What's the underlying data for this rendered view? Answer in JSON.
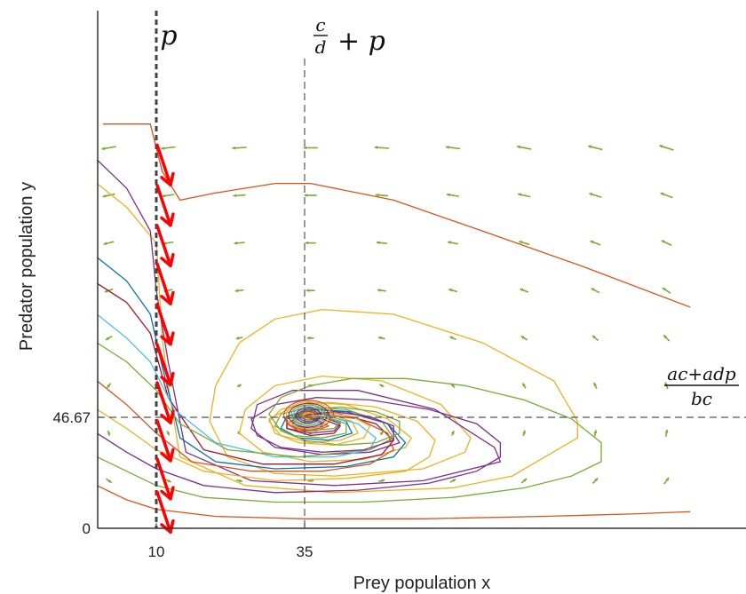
{
  "chart_data": {
    "type": "line",
    "title": "",
    "xlabel": "Prey population x",
    "ylabel": "Predator population y",
    "x_ticks": [
      {
        "value": 10,
        "label": "10"
      },
      {
        "value": 35,
        "label": "35"
      }
    ],
    "y_ticks": [
      {
        "value": 0,
        "label": "0"
      },
      {
        "value": 46.67,
        "label": "46.67"
      }
    ],
    "xlim": [
      0,
      100
    ],
    "ylim": [
      0,
      170
    ],
    "equilibrium": {
      "x": 35,
      "y": 46.67
    },
    "reference_lines": [
      {
        "orientation": "vertical",
        "value": 10,
        "style": "dashed-bold",
        "label": "p"
      },
      {
        "orientation": "vertical",
        "value": 35,
        "style": "dashed",
        "label_numerator": "c",
        "label_denominator": "d",
        "label_suffix": "+ p"
      },
      {
        "orientation": "horizontal",
        "value": 46.67,
        "style": "dashed",
        "label_numerator": "ac+adp",
        "label_denominator": "bc"
      }
    ],
    "spiral": {
      "center": [
        35,
        46.67
      ],
      "colors": [
        "#d95319",
        "#edb120",
        "#7e2f8e",
        "#77ac30",
        "#4dbeee",
        "#a2142f",
        "#0072bd"
      ]
    },
    "trajectories": [
      {
        "color": "#d95319",
        "points": [
          [
            1,
            170
          ],
          [
            9,
            170
          ],
          [
            11,
            150
          ],
          [
            14,
            138
          ],
          [
            20,
            141
          ],
          [
            30,
            145
          ],
          [
            36,
            145
          ],
          [
            50,
            138
          ],
          [
            65,
            125
          ],
          [
            82,
            110
          ],
          [
            100,
            93
          ]
        ]
      },
      {
        "color": "#edb120",
        "points": [
          [
            0,
            145
          ],
          [
            5,
            135
          ],
          [
            10,
            120
          ],
          [
            11,
            80
          ],
          [
            12,
            60
          ],
          [
            14,
            30
          ],
          [
            25,
            18
          ],
          [
            40,
            15
          ],
          [
            60,
            17
          ],
          [
            70,
            22
          ],
          [
            81,
            38
          ],
          [
            81,
            45
          ],
          [
            77,
            62
          ],
          [
            65,
            78
          ],
          [
            50,
            90
          ],
          [
            38,
            92
          ],
          [
            30,
            88
          ],
          [
            24,
            78
          ],
          [
            20,
            60
          ],
          [
            19,
            45
          ],
          [
            22,
            30
          ],
          [
            30,
            23
          ],
          [
            40,
            22
          ],
          [
            55,
            25
          ],
          [
            62,
            32
          ],
          [
            63,
            38
          ],
          [
            58,
            52
          ],
          [
            48,
            62
          ],
          [
            38,
            64
          ],
          [
            30,
            60
          ],
          [
            25,
            50
          ],
          [
            24,
            40
          ],
          [
            28,
            32
          ],
          [
            36,
            28
          ],
          [
            45,
            29
          ],
          [
            52,
            34
          ],
          [
            53,
            38
          ],
          [
            49,
            46
          ],
          [
            42,
            52
          ],
          [
            36,
            53
          ],
          [
            31,
            50
          ],
          [
            29,
            45
          ],
          [
            31,
            39
          ],
          [
            36,
            36
          ],
          [
            41,
            37
          ],
          [
            44,
            40
          ],
          [
            43,
            45
          ],
          [
            39,
            48
          ],
          [
            35,
            49
          ],
          [
            33,
            47
          ],
          [
            33,
            45
          ],
          [
            35,
            44
          ],
          [
            37,
            45
          ],
          [
            36,
            46.5
          ]
        ]
      },
      {
        "color": "#7e2f8e",
        "points": [
          [
            0,
            155
          ],
          [
            5,
            143
          ],
          [
            9,
            125
          ],
          [
            10,
            100
          ],
          [
            12,
            70
          ],
          [
            15,
            32
          ],
          [
            26,
            20
          ],
          [
            40,
            18
          ],
          [
            55,
            20
          ],
          [
            68,
            28
          ],
          [
            67,
            34
          ],
          [
            57,
            50
          ],
          [
            44,
            58
          ],
          [
            33,
            58
          ],
          [
            27,
            52
          ],
          [
            26,
            42
          ],
          [
            30,
            34
          ],
          [
            38,
            31
          ],
          [
            46,
            32
          ],
          [
            51,
            36
          ],
          [
            49,
            44
          ],
          [
            42,
            49
          ],
          [
            36,
            50
          ],
          [
            32,
            47
          ],
          [
            32,
            42
          ],
          [
            36,
            40
          ],
          [
            40,
            41
          ],
          [
            41,
            44
          ],
          [
            38,
            47
          ],
          [
            35,
            47
          ],
          [
            34.5,
            46
          ]
        ]
      },
      {
        "color": "#0072bd",
        "points": [
          [
            0,
            114
          ],
          [
            5,
            104
          ],
          [
            9,
            90
          ],
          [
            11,
            68
          ],
          [
            14,
            38
          ],
          [
            20,
            28
          ],
          [
            30,
            25
          ],
          [
            42,
            26
          ],
          [
            50,
            30
          ],
          [
            52,
            36
          ],
          [
            49,
            44
          ],
          [
            43,
            49
          ],
          [
            37,
            50
          ],
          [
            32,
            47
          ],
          [
            31,
            42
          ],
          [
            34,
            38
          ],
          [
            39,
            37
          ],
          [
            43,
            40
          ],
          [
            42,
            45
          ],
          [
            38,
            48
          ],
          [
            35,
            48
          ],
          [
            34,
            46
          ]
        ]
      },
      {
        "color": "#a2142f",
        "points": [
          [
            0,
            103
          ],
          [
            5,
            95
          ],
          [
            9,
            82
          ],
          [
            12,
            55
          ],
          [
            18,
            33
          ],
          [
            28,
            27
          ],
          [
            40,
            27
          ],
          [
            48,
            31
          ],
          [
            50,
            37
          ],
          [
            47,
            44
          ],
          [
            41,
            48
          ],
          [
            36,
            49
          ],
          [
            32,
            46
          ],
          [
            32,
            42
          ],
          [
            36,
            39
          ],
          [
            40,
            40
          ],
          [
            41,
            43
          ],
          [
            38,
            46
          ],
          [
            35.5,
            46.2
          ]
        ]
      },
      {
        "color": "#4dbeee",
        "points": [
          [
            0,
            90
          ],
          [
            5,
            80
          ],
          [
            9,
            70
          ],
          [
            13,
            50
          ],
          [
            20,
            36
          ],
          [
            30,
            30
          ],
          [
            40,
            30
          ],
          [
            46,
            33
          ],
          [
            47,
            38
          ],
          [
            44,
            44
          ],
          [
            39,
            47
          ],
          [
            35,
            47
          ],
          [
            33,
            45
          ],
          [
            34,
            42
          ],
          [
            37,
            42
          ],
          [
            38,
            44
          ],
          [
            36,
            46
          ]
        ]
      },
      {
        "color": "#77ac30",
        "points": [
          [
            0,
            78
          ],
          [
            5,
            70
          ],
          [
            10,
            58
          ],
          [
            14,
            44
          ],
          [
            22,
            33
          ],
          [
            34,
            30
          ],
          [
            46,
            33
          ],
          [
            50,
            38
          ],
          [
            48,
            45
          ],
          [
            42,
            50
          ],
          [
            36,
            51
          ],
          [
            31,
            48
          ],
          [
            30,
            43
          ],
          [
            33,
            39
          ],
          [
            38,
            38
          ],
          [
            42,
            40
          ],
          [
            42,
            44
          ],
          [
            38,
            47
          ],
          [
            35,
            47
          ],
          [
            34.5,
            46
          ]
        ]
      },
      {
        "color": "#d95319",
        "points": [
          [
            0,
            62
          ],
          [
            5,
            52
          ],
          [
            10,
            40
          ],
          [
            16,
            28
          ],
          [
            26,
            24
          ],
          [
            38,
            24
          ],
          [
            46,
            27
          ],
          [
            50,
            33
          ],
          [
            49,
            40
          ],
          [
            44,
            46
          ],
          [
            38,
            48
          ],
          [
            34,
            47
          ],
          [
            32,
            44
          ],
          [
            34,
            41
          ],
          [
            37,
            41
          ],
          [
            39,
            43
          ],
          [
            37,
            45.5
          ],
          [
            35.5,
            46.3
          ]
        ]
      },
      {
        "color": "#edb120",
        "points": [
          [
            0,
            50
          ],
          [
            5,
            42
          ],
          [
            10,
            33
          ],
          [
            18,
            24
          ],
          [
            30,
            20
          ],
          [
            42,
            21
          ],
          [
            52,
            24
          ],
          [
            56,
            30
          ],
          [
            57,
            37
          ],
          [
            54,
            45
          ],
          [
            47,
            51
          ],
          [
            39,
            53
          ],
          [
            33,
            51
          ],
          [
            29,
            46
          ],
          [
            30,
            40
          ],
          [
            34,
            36
          ],
          [
            40,
            35
          ],
          [
            45,
            38
          ],
          [
            46,
            43
          ],
          [
            43,
            47
          ],
          [
            38,
            49
          ],
          [
            35,
            48
          ],
          [
            33,
            46
          ],
          [
            34,
            44
          ],
          [
            36,
            44
          ],
          [
            36.5,
            45.5
          ]
        ]
      },
      {
        "color": "#7e2f8e",
        "points": [
          [
            0,
            40
          ],
          [
            5,
            32
          ],
          [
            10,
            25
          ],
          [
            18,
            18
          ],
          [
            30,
            15
          ],
          [
            44,
            16
          ],
          [
            56,
            19
          ],
          [
            64,
            24
          ],
          [
            68,
            30
          ],
          [
            68,
            36
          ],
          [
            64,
            44
          ],
          [
            56,
            50
          ],
          [
            46,
            54
          ],
          [
            37,
            55
          ],
          [
            30,
            52
          ],
          [
            26,
            46
          ],
          [
            27,
            39
          ],
          [
            31,
            34
          ],
          [
            38,
            32
          ],
          [
            45,
            33
          ],
          [
            50,
            37
          ],
          [
            50,
            43
          ],
          [
            46,
            47
          ],
          [
            40,
            49
          ],
          [
            36,
            48
          ],
          [
            33,
            46
          ],
          [
            33,
            43
          ],
          [
            36,
            42
          ],
          [
            38,
            43
          ],
          [
            37.5,
            45.2
          ],
          [
            35.8,
            46.2
          ]
        ]
      },
      {
        "color": "#77ac30",
        "points": [
          [
            0,
            30
          ],
          [
            5,
            24
          ],
          [
            10,
            18
          ],
          [
            18,
            13
          ],
          [
            30,
            11
          ],
          [
            45,
            11
          ],
          [
            60,
            13
          ],
          [
            72,
            17
          ],
          [
            80,
            22
          ],
          [
            85,
            28
          ],
          [
            85,
            36
          ],
          [
            80,
            46
          ],
          [
            72,
            54
          ],
          [
            62,
            60
          ],
          [
            52,
            63
          ],
          [
            43,
            63
          ],
          [
            36,
            60
          ],
          [
            31,
            55
          ],
          [
            29,
            48
          ],
          [
            31,
            41
          ],
          [
            35,
            37
          ],
          [
            41,
            35
          ],
          [
            47,
            36
          ],
          [
            51,
            40
          ],
          [
            51,
            45
          ],
          [
            47,
            49
          ],
          [
            41,
            51
          ],
          [
            36,
            50
          ],
          [
            33,
            47
          ],
          [
            33,
            43
          ],
          [
            36,
            41
          ],
          [
            40,
            42
          ],
          [
            41,
            45
          ],
          [
            38,
            47
          ],
          [
            35.5,
            46.5
          ]
        ]
      },
      {
        "color": "#d95319",
        "points": [
          [
            0,
            18
          ],
          [
            5,
            12
          ],
          [
            10,
            8
          ],
          [
            20,
            5
          ],
          [
            35,
            4
          ],
          [
            55,
            4
          ],
          [
            75,
            5
          ],
          [
            90,
            6
          ],
          [
            100,
            7
          ]
        ]
      }
    ],
    "flow_arrows": {
      "color": "#77ac30",
      "grid_x": [
        2,
        12,
        24,
        36,
        48,
        60,
        72,
        84,
        96
      ],
      "grid_y": [
        160,
        140,
        120,
        100,
        80,
        60,
        40,
        20
      ]
    },
    "boundary_arrows": {
      "color": "#ff0000",
      "x": 10,
      "y_values": [
        150,
        133,
        116,
        100,
        83,
        66,
        50,
        34,
        18,
        4
      ]
    },
    "colors": {
      "axis": "#333333",
      "dashed_line": "#555555",
      "boundary_line": "#444444"
    }
  }
}
